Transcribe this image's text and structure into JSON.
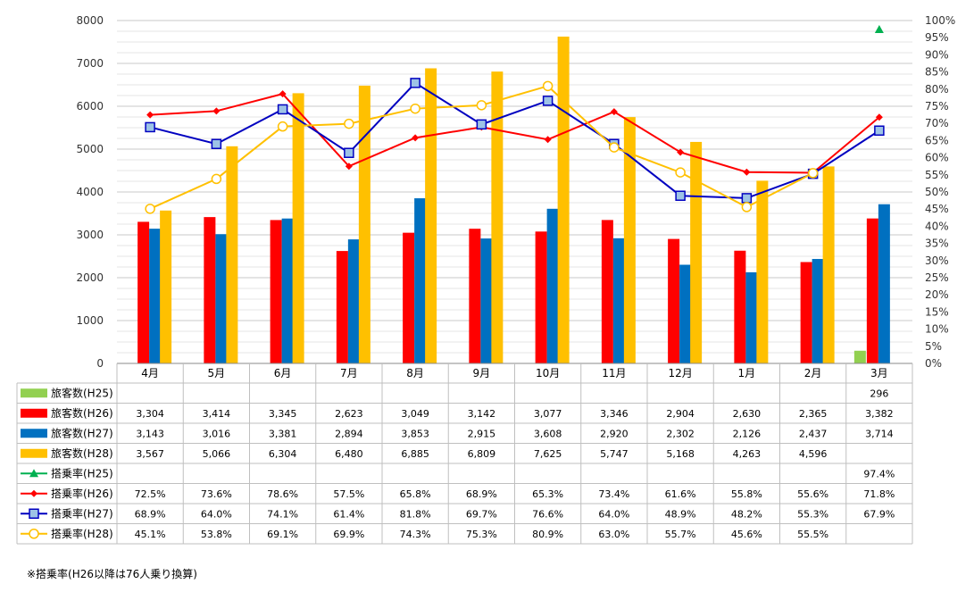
{
  "chart_data": {
    "type": "bar",
    "categories": [
      "4月",
      "5月",
      "6月",
      "7月",
      "8月",
      "9月",
      "10月",
      "11月",
      "12月",
      "1月",
      "2月",
      "3月"
    ],
    "y_left": {
      "min": 0,
      "max": 8000,
      "ticks": [
        "0",
        "1000",
        "2000",
        "3000",
        "4000",
        "5000",
        "6000",
        "7000",
        "8000"
      ]
    },
    "y_right": {
      "min": 0,
      "max": 100,
      "ticks": [
        "0%",
        "5%",
        "10%",
        "15%",
        "20%",
        "25%",
        "30%",
        "35%",
        "40%",
        "45%",
        "50%",
        "55%",
        "60%",
        "65%",
        "70%",
        "75%",
        "80%",
        "85%",
        "90%",
        "95%",
        "100%"
      ]
    },
    "grid": true,
    "bar_series": [
      {
        "name": "旅客数(H25)",
        "color": "#92d050",
        "values": [
          null,
          null,
          null,
          null,
          null,
          null,
          null,
          null,
          null,
          null,
          null,
          296
        ],
        "labels": [
          "",
          "",
          "",
          "",
          "",
          "",
          "",
          "",
          "",
          "",
          "",
          "296"
        ]
      },
      {
        "name": "旅客数(H26)",
        "color": "#ff0000",
        "values": [
          3304,
          3414,
          3345,
          2623,
          3049,
          3142,
          3077,
          3346,
          2904,
          2630,
          2365,
          3382
        ],
        "labels": [
          "3,304",
          "3,414",
          "3,345",
          "2,623",
          "3,049",
          "3,142",
          "3,077",
          "3,346",
          "2,904",
          "2,630",
          "2,365",
          "3,382"
        ]
      },
      {
        "name": "旅客数(H27)",
        "color": "#0070c0",
        "values": [
          3143,
          3016,
          3381,
          2894,
          3853,
          2915,
          3608,
          2920,
          2302,
          2126,
          2437,
          3714
        ],
        "labels": [
          "3,143",
          "3,016",
          "3,381",
          "2,894",
          "3,853",
          "2,915",
          "3,608",
          "2,920",
          "2,302",
          "2,126",
          "2,437",
          "3,714"
        ]
      },
      {
        "name": "旅客数(H28)",
        "color": "#ffc000",
        "values": [
          3567,
          5066,
          6304,
          6480,
          6885,
          6809,
          7625,
          5747,
          5168,
          4263,
          4596,
          null
        ],
        "labels": [
          "3,567",
          "5,066",
          "6,304",
          "6,480",
          "6,885",
          "6,809",
          "7,625",
          "5,747",
          "5,168",
          "4,263",
          "4,596",
          ""
        ]
      }
    ],
    "line_series": [
      {
        "name": "搭乗率(H25)",
        "color": "#00b050",
        "marker": "triangle",
        "values": [
          null,
          null,
          null,
          null,
          null,
          null,
          null,
          null,
          null,
          null,
          null,
          97.4
        ],
        "labels": [
          "",
          "",
          "",
          "",
          "",
          "",
          "",
          "",
          "",
          "",
          "",
          "97.4%"
        ]
      },
      {
        "name": "搭乗率(H26)",
        "color": "#ff0000",
        "marker": "diamond",
        "values": [
          72.5,
          73.6,
          78.6,
          57.5,
          65.8,
          68.9,
          65.3,
          73.4,
          61.6,
          55.8,
          55.6,
          71.8
        ],
        "labels": [
          "72.5%",
          "73.6%",
          "78.6%",
          "57.5%",
          "65.8%",
          "68.9%",
          "65.3%",
          "73.4%",
          "61.6%",
          "55.8%",
          "55.6%",
          "71.8%"
        ]
      },
      {
        "name": "搭乗率(H27)",
        "color": "#0000c0",
        "marker": "square",
        "fill": "#9dc3e6",
        "values": [
          68.9,
          64.0,
          74.1,
          61.4,
          81.8,
          69.7,
          76.6,
          64.0,
          48.9,
          48.2,
          55.3,
          67.9
        ],
        "labels": [
          "68.9%",
          "64.0%",
          "74.1%",
          "61.4%",
          "81.8%",
          "69.7%",
          "76.6%",
          "64.0%",
          "48.9%",
          "48.2%",
          "55.3%",
          "67.9%"
        ]
      },
      {
        "name": "搭乗率(H28)",
        "color": "#ffc000",
        "marker": "circle",
        "fill": "#ffffff",
        "values": [
          45.1,
          53.8,
          69.1,
          69.9,
          74.3,
          75.3,
          80.9,
          63.0,
          55.7,
          45.6,
          55.5,
          null
        ],
        "labels": [
          "45.1%",
          "53.8%",
          "69.1%",
          "69.9%",
          "74.3%",
          "75.3%",
          "80.9%",
          "63.0%",
          "55.7%",
          "45.6%",
          "55.5%",
          ""
        ]
      }
    ]
  },
  "note": "※搭乗率(H26以降は76人乗り換算)"
}
